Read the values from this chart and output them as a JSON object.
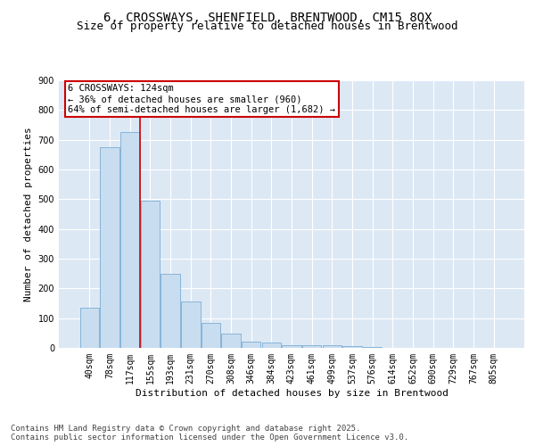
{
  "title_line1": "6, CROSSWAYS, SHENFIELD, BRENTWOOD, CM15 8QX",
  "title_line2": "Size of property relative to detached houses in Brentwood",
  "xlabel": "Distribution of detached houses by size in Brentwood",
  "ylabel": "Number of detached properties",
  "bar_color": "#c9ddf0",
  "bar_edge_color": "#7aadd4",
  "background_color": "#dde8f5",
  "grid_color": "#ffffff",
  "annotation_box_color": "#cc0000",
  "vline_color": "#cc0000",
  "categories": [
    "40sqm",
    "78sqm",
    "117sqm",
    "155sqm",
    "193sqm",
    "231sqm",
    "270sqm",
    "308sqm",
    "346sqm",
    "384sqm",
    "423sqm",
    "461sqm",
    "499sqm",
    "537sqm",
    "576sqm",
    "614sqm",
    "652sqm",
    "690sqm",
    "729sqm",
    "767sqm",
    "805sqm"
  ],
  "values": [
    135,
    675,
    725,
    495,
    250,
    155,
    85,
    48,
    22,
    18,
    10,
    8,
    8,
    5,
    2,
    0,
    0,
    0,
    0,
    0,
    0
  ],
  "vline_x": 2.5,
  "annotation_text": "6 CROSSWAYS: 124sqm\n← 36% of detached houses are smaller (960)\n64% of semi-detached houses are larger (1,682) →",
  "ylim": [
    0,
    900
  ],
  "yticks": [
    0,
    100,
    200,
    300,
    400,
    500,
    600,
    700,
    800,
    900
  ],
  "footnote": "Contains HM Land Registry data © Crown copyright and database right 2025.\nContains public sector information licensed under the Open Government Licence v3.0.",
  "title_fontsize": 10,
  "subtitle_fontsize": 9,
  "axis_label_fontsize": 8,
  "tick_fontsize": 7,
  "annotation_fontsize": 7.5,
  "footnote_fontsize": 6.5
}
